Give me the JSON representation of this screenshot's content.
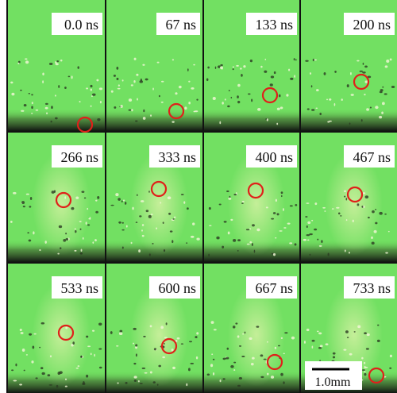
{
  "panels": [
    {
      "label": "0.0 ns"
    },
    {
      "label": "67 ns"
    },
    {
      "label": "133 ns"
    },
    {
      "label": "200 ns"
    },
    {
      "label": "266 ns"
    },
    {
      "label": "333 ns"
    },
    {
      "label": "400 ns"
    },
    {
      "label": "467 ns"
    },
    {
      "label": "533 ns"
    },
    {
      "label": "600 ns"
    },
    {
      "label": "667 ns"
    },
    {
      "label": "733 ns"
    }
  ],
  "scale_bar": {
    "label": "1.0mm"
  }
}
